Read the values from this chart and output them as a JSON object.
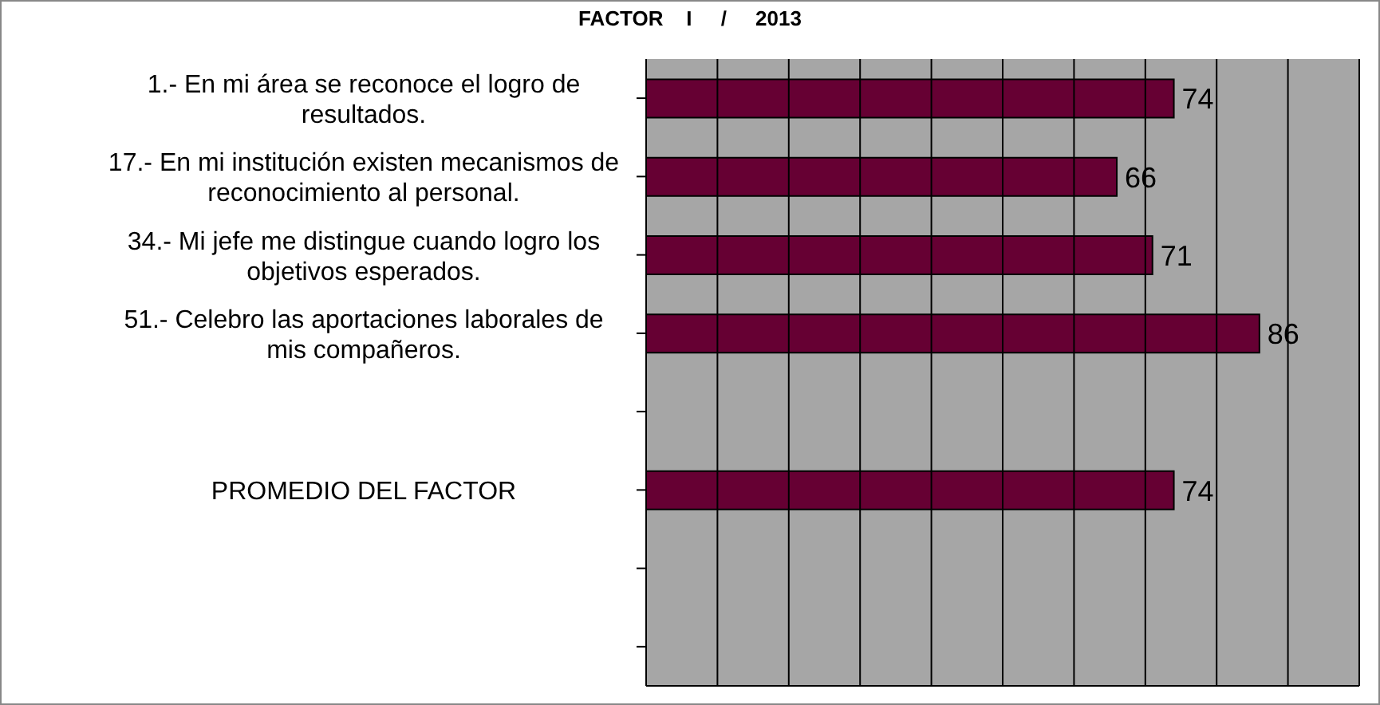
{
  "chart_data": {
    "type": "bar",
    "orientation": "horizontal",
    "title": "FACTOR    I     /     2013",
    "categories": [
      "1.- En mi área se reconoce el logro de resultados.",
      "17.- En mi institución existen mecanismos de reconocimiento al personal.",
      "34.- Mi jefe me distingue cuando logro los objetivos esperados.",
      "51.- Celebro las aportaciones laborales de mis compañeros.",
      null,
      "PROMEDIO DEL FACTOR",
      null,
      null
    ],
    "values": [
      74,
      66,
      71,
      86,
      null,
      74,
      null,
      null
    ],
    "color": "#660033",
    "data_labels": true,
    "xlim": [
      0,
      100
    ],
    "xticks": [
      {
        "value": 0,
        "label": null
      },
      {
        "value": 10,
        "label": null
      },
      {
        "value": 20,
        "label": null
      },
      {
        "value": 30,
        "label": null
      },
      {
        "value": 40,
        "label": null
      },
      {
        "value": 50,
        "label": null
      },
      {
        "value": 60,
        "label": null
      },
      {
        "value": 70,
        "label": null
      },
      {
        "value": 80,
        "label": null
      },
      {
        "value": 90,
        "label": null
      },
      {
        "value": 100,
        "label": null
      }
    ],
    "tick_labels": "y",
    "grid": "x",
    "legend": false
  }
}
